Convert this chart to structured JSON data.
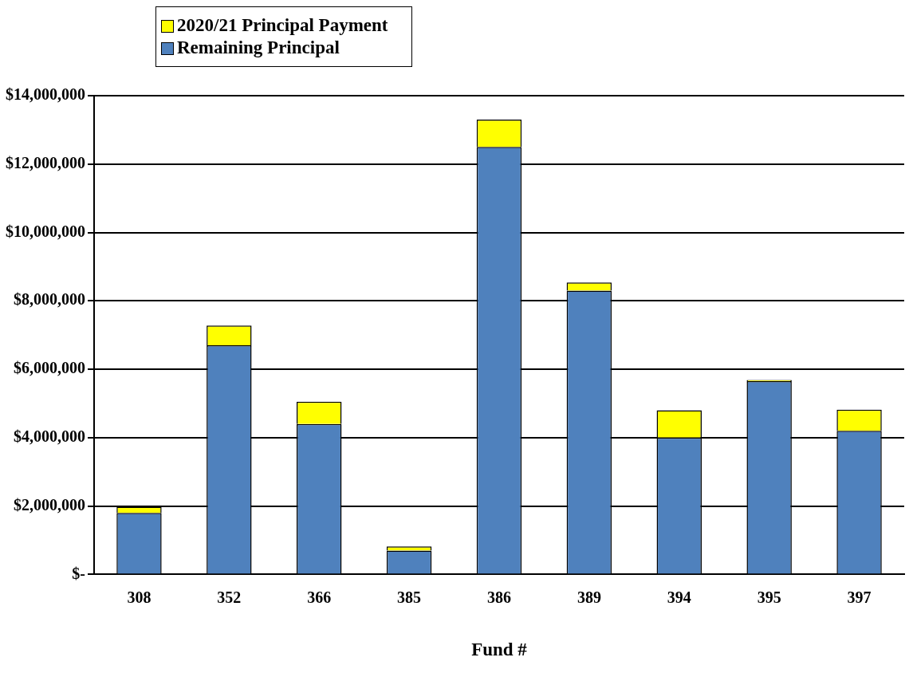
{
  "chart_data": {
    "type": "bar",
    "stacked": true,
    "xlabel": "Fund #",
    "categories": [
      "308",
      "352",
      "366",
      "385",
      "386",
      "389",
      "394",
      "395",
      "397"
    ],
    "series": [
      {
        "name": "Remaining Principal",
        "color": "#4f81bd",
        "values": [
          1800000,
          6700000,
          4400000,
          700000,
          12500000,
          8300000,
          4000000,
          5650000,
          4200000
        ]
      },
      {
        "name": "2020/21 Principal Payment",
        "color": "#ffff00",
        "values": [
          180000,
          580000,
          650000,
          120000,
          800000,
          240000,
          800000,
          40000,
          620000
        ]
      }
    ],
    "ylim": [
      0,
      14000000
    ],
    "yticks": [
      {
        "value": 0,
        "label": "$-"
      },
      {
        "value": 2000000,
        "label": "$2,000,000"
      },
      {
        "value": 4000000,
        "label": "$4,000,000"
      },
      {
        "value": 6000000,
        "label": "$6,000,000"
      },
      {
        "value": 8000000,
        "label": "$8,000,000"
      },
      {
        "value": 10000000,
        "label": "$10,000,000"
      },
      {
        "value": 12000000,
        "label": "$12,000,000"
      },
      {
        "value": 14000000,
        "label": "$14,000,000"
      }
    ],
    "grid": "y",
    "legend": "top left"
  }
}
